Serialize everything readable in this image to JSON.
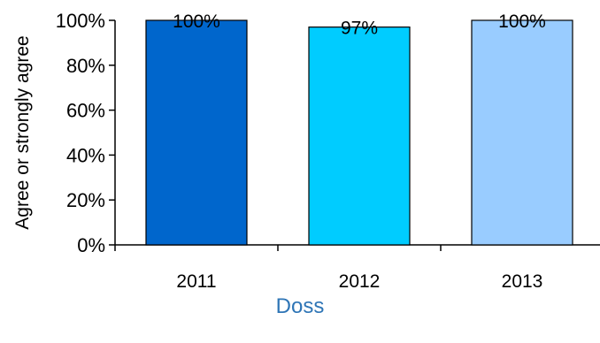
{
  "chart_data": {
    "type": "bar",
    "categories": [
      "2011",
      "2012",
      "2013"
    ],
    "values": [
      100,
      97,
      100
    ],
    "data_labels": [
      "100%",
      "97%",
      "100%"
    ],
    "ylabel": "Agree or strongly agree",
    "xlabel": "Doss",
    "ylim": [
      0,
      100
    ],
    "yticks": [
      "0%",
      "20%",
      "40%",
      "60%",
      "80%",
      "100%"
    ],
    "bar_colors": [
      "#0066CC",
      "#00CCFF",
      "#99CCFF"
    ],
    "xlabel_color": "#2E75B6",
    "grid": false,
    "legend": "none"
  }
}
